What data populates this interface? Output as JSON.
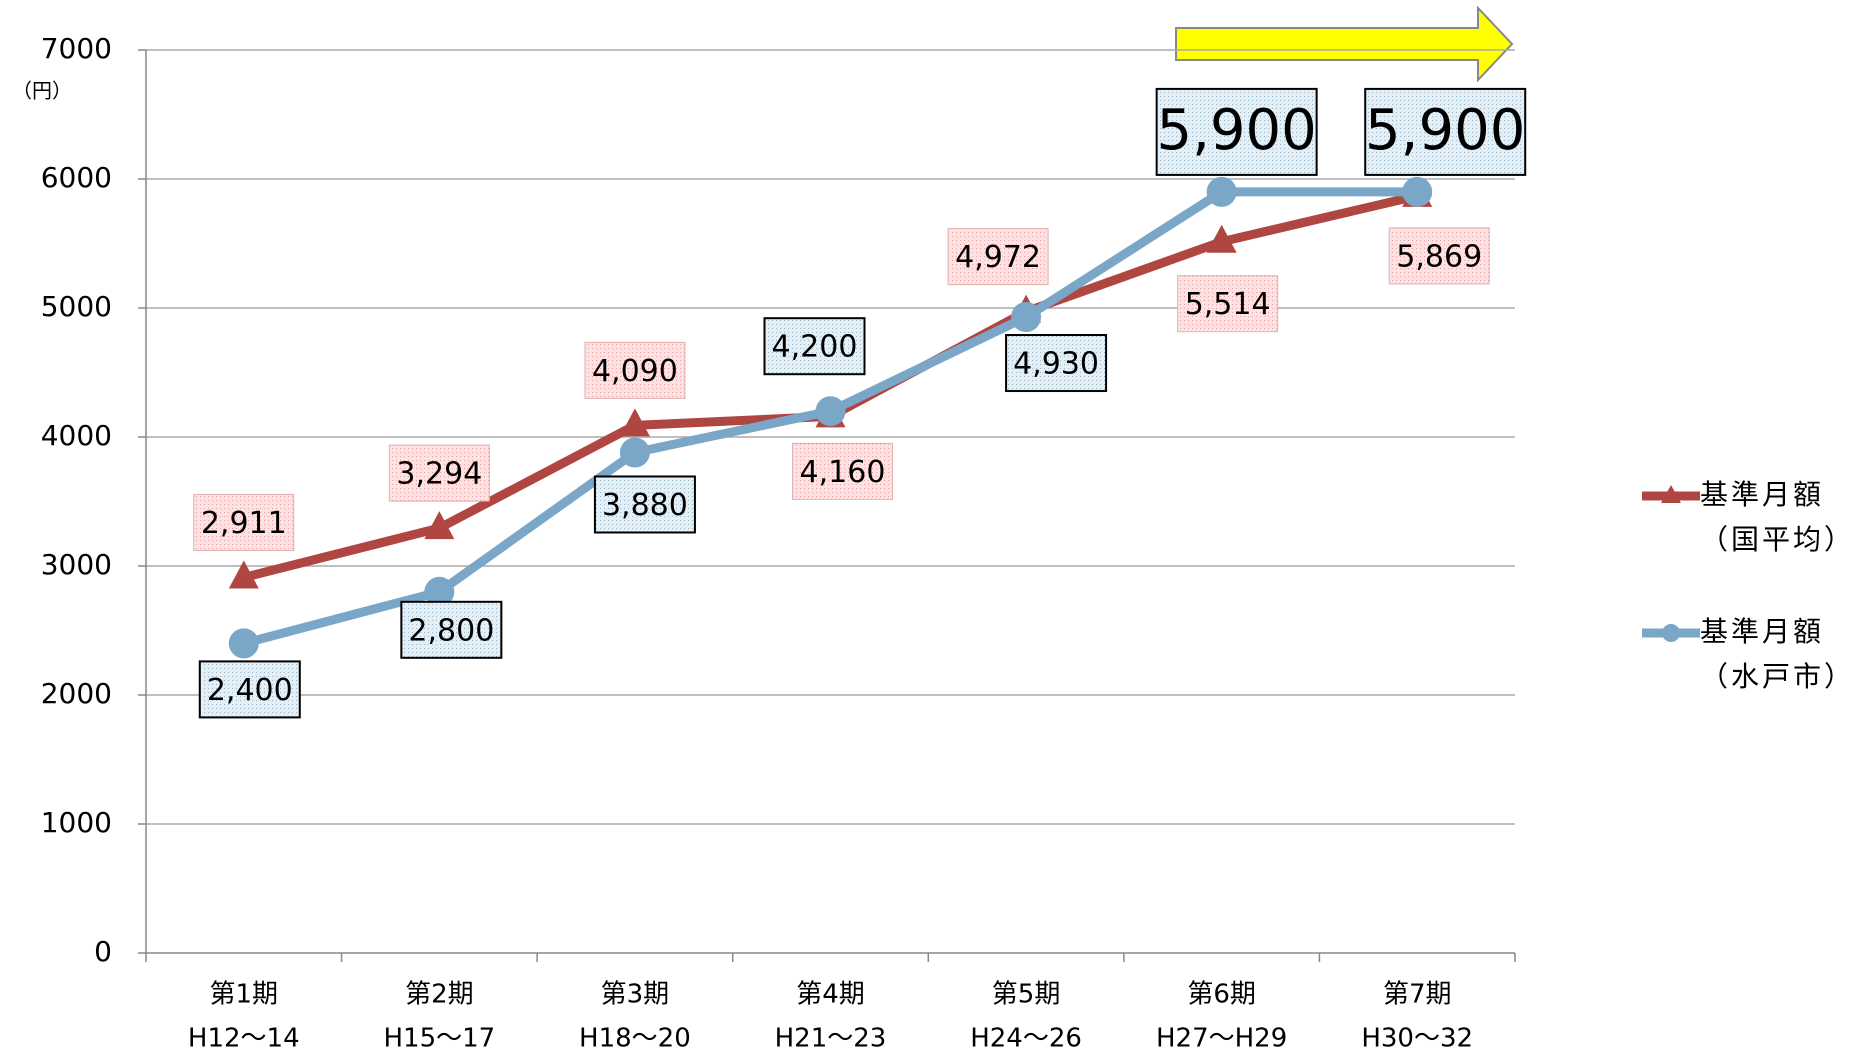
{
  "chart_data": {
    "type": "line",
    "y_unit": "（円）",
    "categories": [
      [
        "第1期",
        "H12～14"
      ],
      [
        "第2期",
        "H15～17"
      ],
      [
        "第3期",
        "H18～20"
      ],
      [
        "第4期",
        "H21～23"
      ],
      [
        "第5期",
        "H24～26"
      ],
      [
        "第6期",
        "H27～H29"
      ],
      [
        "第7期",
        "H30～32"
      ]
    ],
    "series": [
      {
        "name": [
          "基準月額",
          "（国平均）"
        ],
        "color": "#b04642",
        "marker": "triangle",
        "values": [
          2911,
          3294,
          4090,
          4160,
          4972,
          5514,
          5869
        ],
        "value_labels": [
          "2,911",
          "3,294",
          "4,090",
          "4,160",
          "4,972",
          "5,514",
          "5,869"
        ]
      },
      {
        "name": [
          "基準月額",
          "（水戸市）"
        ],
        "color": "#7aa6c8",
        "marker": "circle",
        "values": [
          2400,
          2800,
          3880,
          4200,
          4930,
          5900,
          5900
        ],
        "value_labels": [
          "2,400",
          "2,800",
          "3,880",
          "4,200",
          "4,930",
          "5,900",
          "5,900"
        ]
      }
    ],
    "ylim": [
      0,
      7000
    ],
    "yticks": [
      0,
      1000,
      2000,
      3000,
      4000,
      5000,
      6000,
      7000
    ],
    "grid": true
  }
}
